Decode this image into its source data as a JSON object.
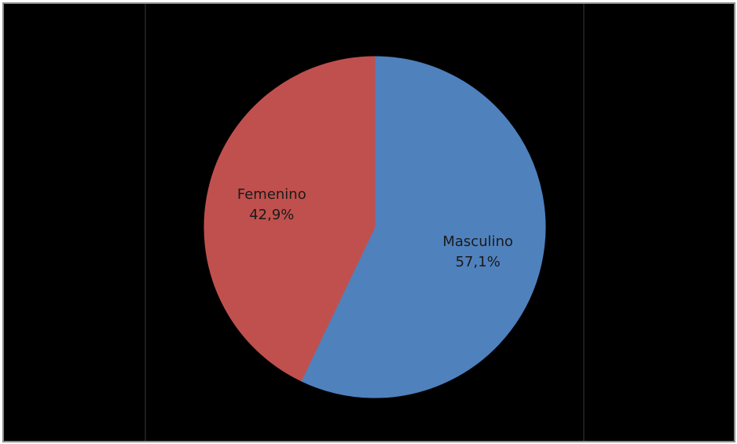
{
  "chart_data": {
    "type": "pie",
    "title": "",
    "slices": [
      {
        "label": "Masculino",
        "value": 57.1,
        "value_label": "57,1%",
        "color": "#4f81bd"
      },
      {
        "label": "Femenino",
        "value": 42.9,
        "value_label": "42,9%",
        "color": "#c0504d"
      }
    ],
    "start_angle": "12 o'clock",
    "direction": "clockwise",
    "background": "#000000",
    "border_color": "#8c8c8c"
  }
}
